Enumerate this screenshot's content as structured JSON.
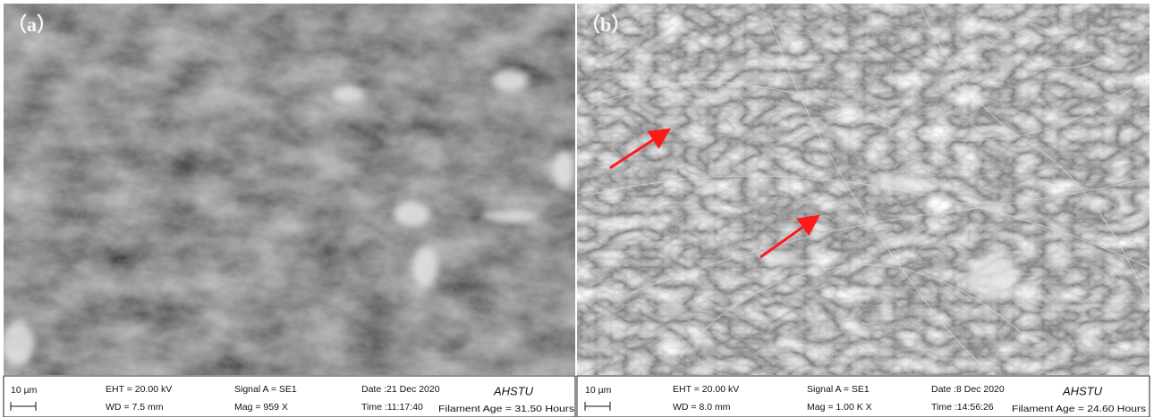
{
  "panels": [
    {
      "label": "（a）",
      "scale_bar": "10 µm",
      "eht": "EHT = 20.00 kV",
      "wd": "WD = 7.5 mm",
      "signal": "Signal A = SE1",
      "mag": "Mag =  959 X",
      "date": "Date :21 Dec 2020",
      "time": "Time :11:17:40",
      "brand": "AHSTU",
      "filament": "Filament Age = 31.50 Hours"
    },
    {
      "label": "（b）",
      "scale_bar": "10 µm",
      "eht": "EHT = 20.00 kV",
      "wd": "WD = 8.0 mm",
      "signal": "Signal A = SE1",
      "mag": "Mag =    1.00 K X",
      "date": "Date :8 Dec 2020",
      "time": "Time :14:56:26",
      "brand": "AHSTU",
      "filament": "Filament Age = 24.60 Hours"
    }
  ]
}
